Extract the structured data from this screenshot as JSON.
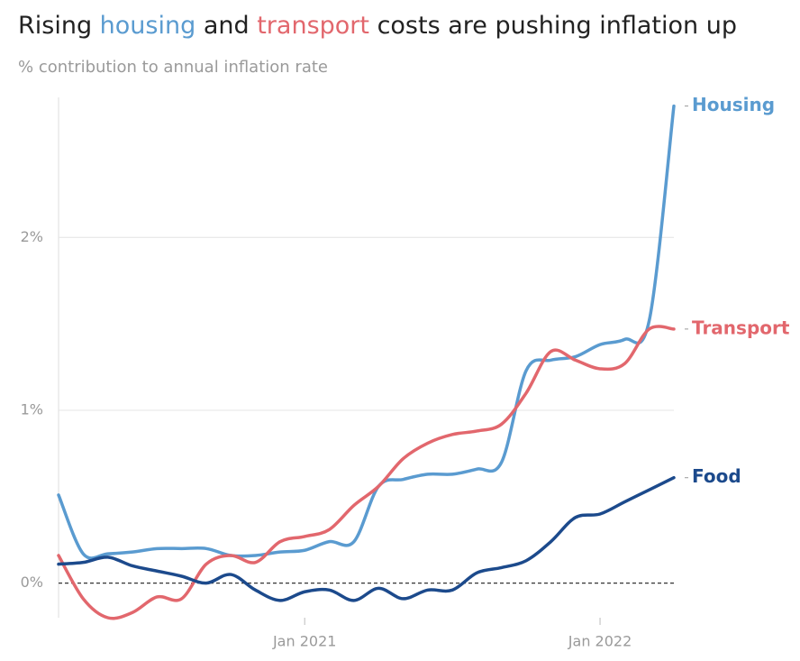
{
  "chart_data": {
    "type": "line",
    "title_parts": [
      {
        "text": "Rising "
      },
      {
        "text": "housing",
        "color": "#5a9bd0"
      },
      {
        "text": " and "
      },
      {
        "text": "transport",
        "color": "#e2676d"
      },
      {
        "text": " costs are pushing inflation up"
      }
    ],
    "subtitle": "% contribution to annual inflation rate",
    "x": [
      "2020-03",
      "2020-04",
      "2020-05",
      "2020-06",
      "2020-07",
      "2020-08",
      "2020-09",
      "2020-10",
      "2020-11",
      "2020-12",
      "2021-01",
      "2021-02",
      "2021-03",
      "2021-04",
      "2021-05",
      "2021-06",
      "2021-07",
      "2021-08",
      "2021-09",
      "2021-10",
      "2021-11",
      "2021-12",
      "2022-01",
      "2022-02",
      "2022-03",
      "2022-04"
    ],
    "series": [
      {
        "name": "Housing",
        "color": "#5a9bd0",
        "values": [
          0.51,
          0.17,
          0.17,
          0.18,
          0.2,
          0.2,
          0.2,
          0.16,
          0.16,
          0.18,
          0.19,
          0.24,
          0.24,
          0.56,
          0.6,
          0.63,
          0.63,
          0.66,
          0.7,
          1.23,
          1.29,
          1.31,
          1.38,
          1.41,
          1.52,
          2.76
        ]
      },
      {
        "name": "Transport",
        "color": "#e2676d",
        "values": [
          0.16,
          -0.09,
          -0.2,
          -0.17,
          -0.08,
          -0.09,
          0.11,
          0.16,
          0.12,
          0.24,
          0.27,
          0.31,
          0.45,
          0.56,
          0.72,
          0.81,
          0.86,
          0.88,
          0.92,
          1.1,
          1.34,
          1.29,
          1.24,
          1.27,
          1.47,
          1.47
        ]
      },
      {
        "name": "Food",
        "color": "#1c4a8c",
        "values": [
          0.11,
          0.12,
          0.15,
          0.1,
          0.07,
          0.04,
          0.0,
          0.05,
          -0.04,
          -0.1,
          -0.05,
          -0.04,
          -0.1,
          -0.03,
          -0.09,
          -0.04,
          -0.04,
          0.06,
          0.09,
          0.13,
          0.24,
          0.38,
          0.4,
          0.47,
          0.54,
          0.61
        ]
      }
    ],
    "xlim": [
      "2020-03",
      "2022-04"
    ],
    "xticks": [
      {
        "value": "2021-01",
        "label": "Jan 2021"
      },
      {
        "value": "2022-01",
        "label": "Jan 2022"
      }
    ],
    "ylim": [
      -0.2,
      2.81
    ],
    "yticks": [
      {
        "value": 0,
        "label": "0%"
      },
      {
        "value": 1,
        "label": "1%"
      },
      {
        "value": 2,
        "label": "2%"
      }
    ],
    "grid": true
  }
}
